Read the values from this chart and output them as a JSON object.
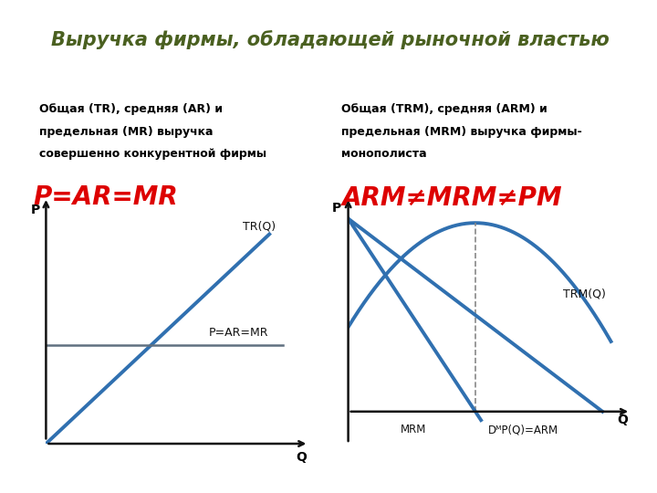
{
  "title": "Выручка фирмы, обладающей рыночной властью",
  "title_bg": "#d8e8b8",
  "title_color": "#4a6020",
  "title_fontsize": 15,
  "left_subtitle_line1": "Общая (TR), средняя (AR) и",
  "left_subtitle_line2": "предельная (MR) выручка",
  "left_subtitle_line3": "совершенно конкурентной фирмы",
  "right_subtitle_line1": "Общая (TRМ), средняя (ARМ) и",
  "right_subtitle_line2": "предельная (MRМ) выручка фирмы-",
  "right_subtitle_line3": "монополиста",
  "left_formula": "P=AR=MR",
  "right_formula": "ARМ≠MRМ≠PМ",
  "formula_color": "#dd0000",
  "formula_fontsize": 20,
  "subtitle_fontsize": 9,
  "curve_color_blue": "#3070b0",
  "curve_color_gray": "#607080",
  "axis_color": "#111111",
  "background_color": "#ffffff",
  "label_color": "#111111"
}
